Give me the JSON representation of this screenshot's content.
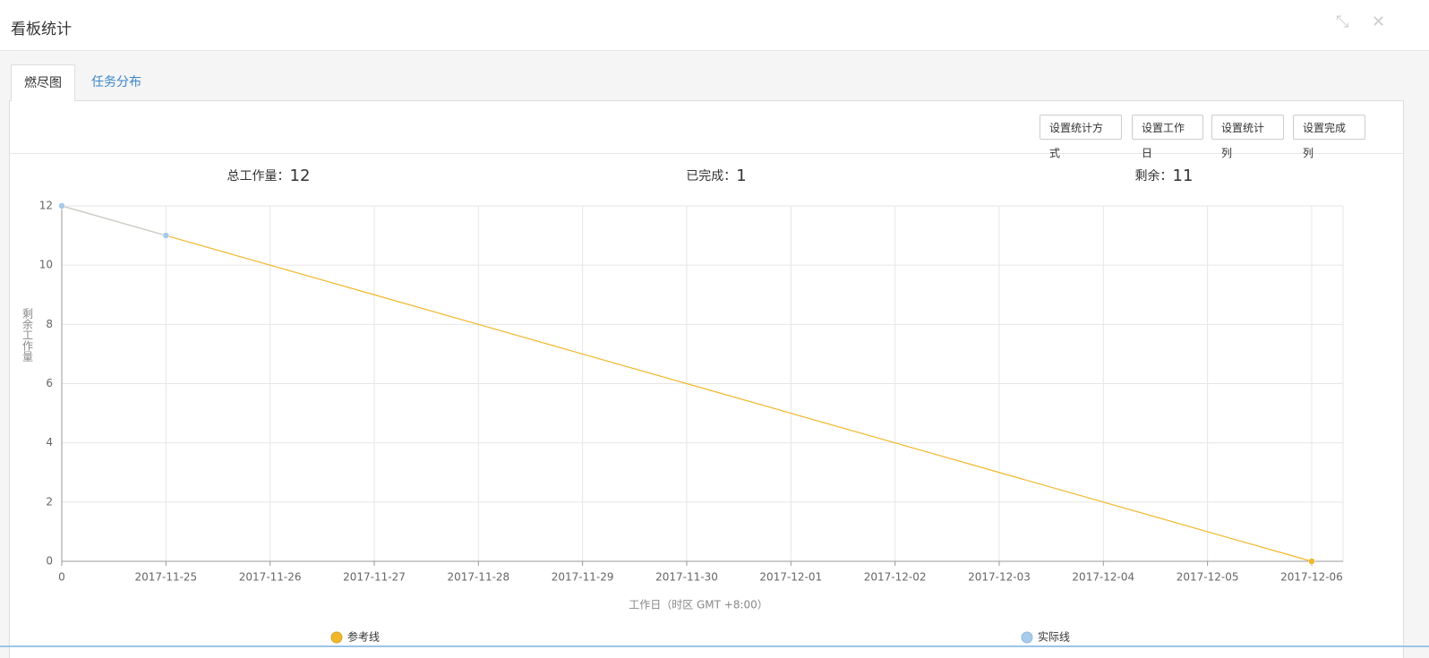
{
  "header": {
    "title": "看板统计"
  },
  "tabs": [
    "燃尽图",
    "任务分布"
  ],
  "buttons": [
    "设置统计方式",
    "设置工作日",
    "设置统计列",
    "设置完成列"
  ],
  "summary": [
    {
      "label": "总工作量：",
      "value": 12
    },
    {
      "label": "已完成：",
      "value": 1
    },
    {
      "label": "剩余：",
      "value": 11
    }
  ],
  "chart_data": {
    "type": "line",
    "categories": [
      "0",
      "2017-11-25",
      "2017-11-26",
      "2017-11-27",
      "2017-11-28",
      "2017-11-29",
      "2017-11-30",
      "2017-12-01",
      "2017-12-02",
      "2017-12-03",
      "2017-12-04",
      "2017-12-05",
      "2017-12-06"
    ],
    "series": [
      {
        "name": "参考线",
        "color": "#f0b72a",
        "values": [
          12,
          11,
          10,
          9,
          8,
          7,
          6,
          5,
          4,
          3,
          2,
          1,
          0
        ]
      },
      {
        "name": "实际线",
        "color": "#a8cbea",
        "values": [
          12,
          11,
          null,
          null,
          null,
          null,
          null,
          null,
          null,
          null,
          null,
          null,
          null
        ]
      }
    ],
    "ylabel": "剩余工作量",
    "xlabel": "工作日（时区 GMT +8:00）",
    "ylim": [
      0,
      12
    ],
    "yticks": [
      0,
      2,
      4,
      6,
      8,
      10,
      12
    ],
    "grid": true
  }
}
